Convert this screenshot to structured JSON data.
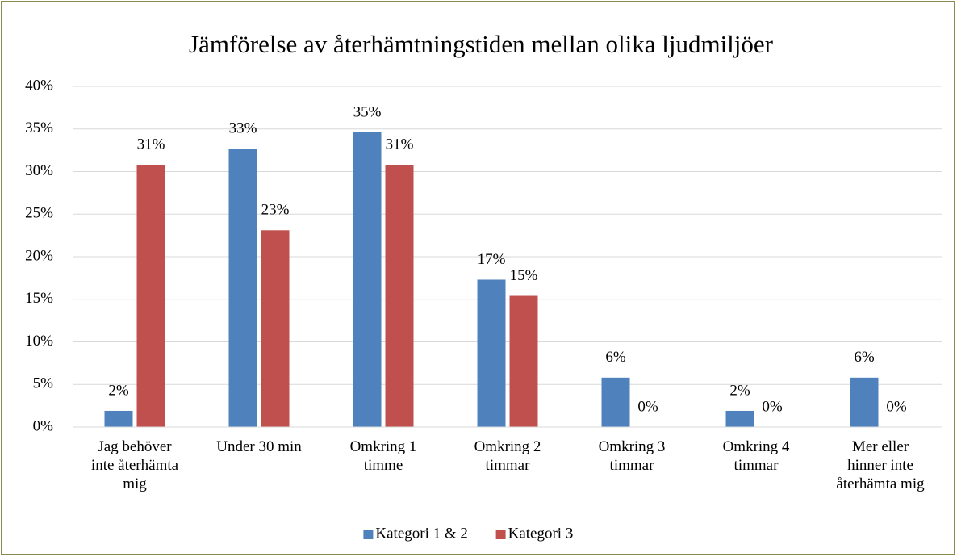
{
  "chart_data": {
    "type": "bar",
    "title": "Jämförelse av återhämtningstiden mellan olika ljudmiljöer",
    "categories": [
      "Jag behöver\ninte återhämta\nmig",
      "Under 30 min",
      "Omkring 1\ntimme",
      "Omkring 2\ntimmar",
      "Omkring 3\ntimmar",
      "Omkring 4\ntimmar",
      "Mer eller\nhinner inte\nåterhämta mig"
    ],
    "series": [
      {
        "name": "Kategori 1 & 2",
        "color": "#4f81bd",
        "values": [
          1.9,
          32.7,
          34.6,
          17.3,
          5.8,
          1.9,
          5.8
        ],
        "value_labels": [
          "2%",
          "33%",
          "35%",
          "17%",
          "6%",
          "2%",
          "6%"
        ]
      },
      {
        "name": "Kategori 3",
        "color": "#c0504d",
        "values": [
          30.8,
          23.1,
          30.8,
          15.4,
          0,
          0,
          0
        ],
        "value_labels": [
          "31%",
          "23%",
          "31%",
          "15%",
          "0%",
          "0%",
          "0%"
        ]
      }
    ],
    "ylim": [
      0,
      40
    ],
    "yticks": [
      {
        "value": 0,
        "label": "0%"
      },
      {
        "value": 5,
        "label": "5%"
      },
      {
        "value": 10,
        "label": "10%"
      },
      {
        "value": 15,
        "label": "15%"
      },
      {
        "value": 20,
        "label": "20%"
      },
      {
        "value": 25,
        "label": "25%"
      },
      {
        "value": 30,
        "label": "30%"
      },
      {
        "value": 35,
        "label": "35%"
      },
      {
        "value": 40,
        "label": "40%"
      }
    ],
    "grid": true,
    "legend": "bottom"
  }
}
